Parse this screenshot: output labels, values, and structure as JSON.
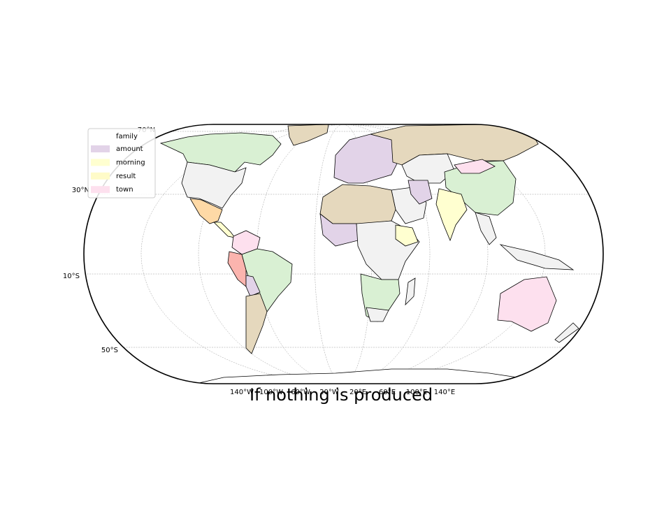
{
  "title": "If nothing is produced",
  "legend": {
    "title": "family",
    "entries": [
      {
        "label": "amount",
        "color": "#e2d3e8"
      },
      {
        "label": "morning",
        "color": "#ffffd0"
      },
      {
        "label": "result",
        "color": "#fffbc8"
      },
      {
        "label": "town",
        "color": "#fde0ee"
      }
    ]
  },
  "lat_labels": [
    "70°N",
    "30°N",
    "10°S",
    "50°S"
  ],
  "lon_labels": [
    "140°W",
    "100°W",
    "60°W",
    "20°W",
    "20°E",
    "60°E",
    "100°E",
    "140°E"
  ]
}
